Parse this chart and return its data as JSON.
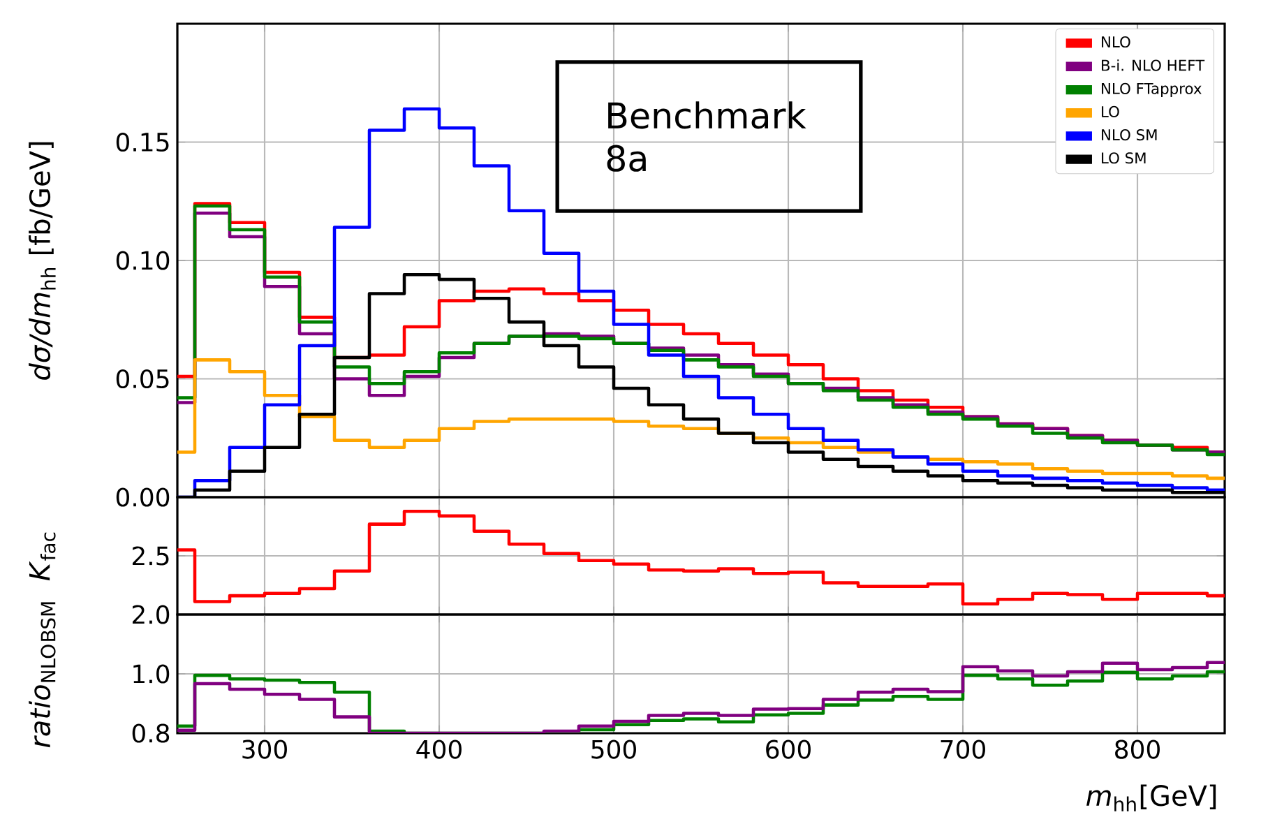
{
  "chart_data": [
    {
      "type": "histogram",
      "ylabel": "*dσ/dm*$_{hh}$ [fb/GeV]",
      "annotations": [
        "Benchmark 8a"
      ],
      "legend": "top right",
      "grid": true,
      "tick_labels": "y",
      "bins": [
        250,
        260,
        280,
        300,
        320,
        340,
        360,
        380,
        400,
        420,
        440,
        460,
        480,
        500,
        520,
        540,
        560,
        580,
        600,
        620,
        640,
        660,
        680,
        700,
        720,
        740,
        760,
        780,
        800,
        820,
        840,
        850
      ],
      "xlim": [
        250,
        850
      ],
      "xticks": [
        300,
        400,
        500,
        600,
        700,
        800
      ],
      "ylim": [
        0,
        0.2
      ],
      "yticks": [
        {
          "value": 0,
          "label": "0.00"
        },
        {
          "value": 0.05,
          "label": "0.05"
        },
        {
          "value": 0.1,
          "label": "0.10"
        },
        {
          "value": 0.15,
          "label": "0.15"
        }
      ],
      "series": [
        {
          "name": "NLO",
          "color": "#ff0000",
          "values": [
            0.051,
            0.124,
            0.116,
            0.095,
            0.076,
            0.059,
            0.06,
            0.072,
            0.083,
            0.087,
            0.088,
            0.086,
            0.083,
            0.079,
            0.073,
            0.069,
            0.065,
            0.06,
            0.056,
            0.05,
            0.045,
            0.041,
            0.038,
            0.034,
            0.031,
            0.029,
            0.026,
            0.024,
            0.022,
            0.021,
            0.019
          ]
        },
        {
          "name": "B-i. NLO HEFT",
          "color": "#800080",
          "values": [
            0.04,
            0.12,
            0.11,
            0.089,
            0.069,
            0.05,
            0.043,
            0.051,
            0.059,
            0.065,
            0.068,
            0.069,
            0.068,
            0.065,
            0.063,
            0.06,
            0.056,
            0.052,
            0.048,
            0.046,
            0.042,
            0.039,
            0.036,
            0.034,
            0.031,
            0.029,
            0.026,
            0.024,
            0.022,
            0.02,
            0.019
          ]
        },
        {
          "name": "NLO FTapprox",
          "color": "#008000",
          "values": [
            0.042,
            0.123,
            0.113,
            0.093,
            0.074,
            0.055,
            0.048,
            0.053,
            0.061,
            0.065,
            0.068,
            0.068,
            0.067,
            0.065,
            0.062,
            0.058,
            0.055,
            0.051,
            0.048,
            0.045,
            0.041,
            0.038,
            0.035,
            0.033,
            0.03,
            0.027,
            0.025,
            0.023,
            0.022,
            0.02,
            0.018
          ]
        },
        {
          "name": "LO",
          "color": "#ffa500",
          "values": [
            0.019,
            0.058,
            0.053,
            0.043,
            0.034,
            0.024,
            0.021,
            0.024,
            0.029,
            0.032,
            0.033,
            0.033,
            0.033,
            0.032,
            0.03,
            0.029,
            0.027,
            0.025,
            0.023,
            0.021,
            0.019,
            0.017,
            0.016,
            0.015,
            0.014,
            0.012,
            0.011,
            0.01,
            0.01,
            0.009,
            0.008
          ]
        },
        {
          "name": "NLO SM",
          "color": "#0000ff",
          "values": [
            0.0,
            0.007,
            0.021,
            0.039,
            0.064,
            0.114,
            0.155,
            0.164,
            0.156,
            0.14,
            0.121,
            0.103,
            0.087,
            0.073,
            0.06,
            0.051,
            0.042,
            0.035,
            0.029,
            0.024,
            0.02,
            0.017,
            0.014,
            0.011,
            0.009,
            0.008,
            0.007,
            0.006,
            0.005,
            0.004,
            0.003
          ]
        },
        {
          "name": "LO SM",
          "color": "#000000",
          "values": [
            0.0,
            0.003,
            0.011,
            0.021,
            0.035,
            0.059,
            0.086,
            0.094,
            0.092,
            0.084,
            0.074,
            0.064,
            0.055,
            0.046,
            0.039,
            0.033,
            0.027,
            0.023,
            0.019,
            0.016,
            0.013,
            0.011,
            0.009,
            0.007,
            0.006,
            0.005,
            0.004,
            0.003,
            0.003,
            0.002,
            0.002
          ]
        }
      ]
    },
    {
      "type": "histogram",
      "ylabel": "*K*$_{fac}$",
      "grid": true,
      "tick_labels": "y",
      "bins": [
        250,
        260,
        280,
        300,
        320,
        340,
        360,
        380,
        400,
        420,
        440,
        460,
        480,
        500,
        520,
        540,
        560,
        580,
        600,
        620,
        640,
        660,
        680,
        700,
        720,
        740,
        760,
        780,
        800,
        820,
        840,
        850
      ],
      "xlim": [
        250,
        850
      ],
      "xticks": [
        300,
        400,
        500,
        600,
        700,
        800
      ],
      "ylim": [
        2.0,
        3.0
      ],
      "yticks": [
        {
          "value": 2,
          "label": "2.0"
        },
        2.5
      ],
      "series": [
        {
          "color": "#ff0000",
          "values": [
            2.55,
            2.11,
            2.16,
            2.18,
            2.22,
            2.37,
            2.77,
            2.88,
            2.84,
            2.71,
            2.6,
            2.52,
            2.46,
            2.43,
            2.38,
            2.37,
            2.39,
            2.35,
            2.36,
            2.27,
            2.24,
            2.24,
            2.26,
            2.09,
            2.13,
            2.18,
            2.17,
            2.13,
            2.18,
            2.18,
            2.16
          ]
        }
      ]
    },
    {
      "type": "histogram",
      "ylabel": "*ratio*$_{NLO}$$_{BSM}$",
      "xlabel": "*m*$_{hh}$[GeV]",
      "grid": true,
      "bins": [
        250,
        260,
        280,
        300,
        320,
        340,
        360,
        380,
        400,
        420,
        440,
        460,
        480,
        500,
        520,
        540,
        560,
        580,
        600,
        620,
        640,
        660,
        680,
        700,
        720,
        740,
        760,
        780,
        800,
        820,
        840,
        850
      ],
      "xlim": [
        250,
        850
      ],
      "xticks": [
        300,
        400,
        500,
        600,
        700,
        800
      ],
      "ylim": [
        0.8,
        1.2
      ],
      "yticks": [
        0.8,
        {
          "value": 1,
          "label": "1.0"
        }
      ],
      "series": [
        {
          "color": "#008000",
          "values": [
            0.824,
            0.995,
            0.983,
            0.979,
            0.971,
            0.938,
            0.807,
            0.8,
            0.8,
            0.8,
            0.8,
            0.8,
            0.812,
            0.829,
            0.843,
            0.848,
            0.838,
            0.862,
            0.867,
            0.895,
            0.912,
            0.924,
            0.914,
            0.995,
            0.983,
            0.962,
            0.976,
            1.005,
            0.983,
            0.993,
            1.007
          ]
        },
        {
          "color": "#800080",
          "values": [
            0.81,
            0.967,
            0.948,
            0.931,
            0.914,
            0.855,
            0.8,
            0.8,
            0.8,
            0.8,
            0.8,
            0.807,
            0.824,
            0.84,
            0.86,
            0.867,
            0.86,
            0.881,
            0.883,
            0.914,
            0.938,
            0.948,
            0.94,
            1.024,
            1.01,
            0.993,
            1.007,
            1.036,
            1.014,
            1.021,
            1.038
          ]
        }
      ]
    }
  ]
}
